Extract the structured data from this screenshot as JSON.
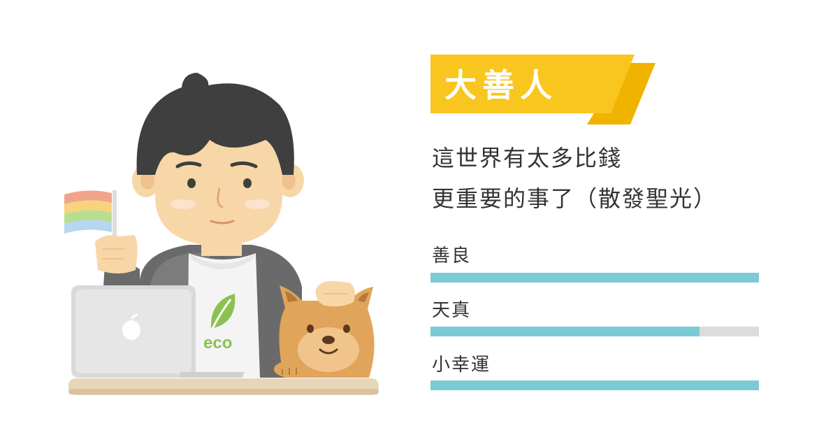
{
  "badge": {
    "title": "大善人",
    "color": "#f9c620",
    "shadow_color": "#f0b400"
  },
  "description": {
    "line1": "這世界有太多比錢",
    "line2": "更重要的事了（散發聖光）"
  },
  "traits": [
    {
      "label": "善良",
      "fraction": 1.0
    },
    {
      "label": "天真",
      "fraction": 0.82
    },
    {
      "label": "小幸運",
      "fraction": 1.0
    }
  ],
  "bar_color": "#7ccad6",
  "track_color": "#dcdcdc",
  "illustration": {
    "shirt_text": "eco",
    "icons": [
      "rainbow-flag-icon",
      "laptop-icon",
      "apple-logo-icon",
      "leaf-icon",
      "dog-icon"
    ]
  }
}
